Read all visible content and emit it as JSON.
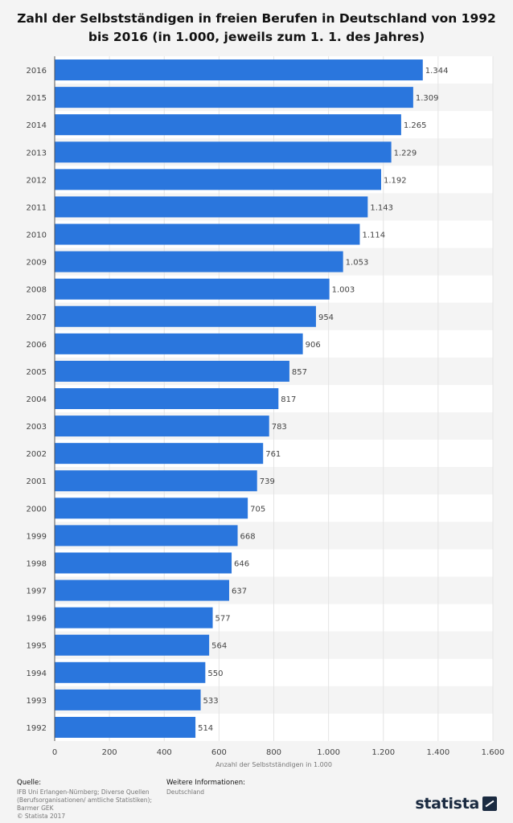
{
  "title": "Zahl der Selbstständigen in freien Berufen in Deutschland von 1992 bis 2016 (in 1.000, jeweils zum 1. 1. des Jahres)",
  "colors": {
    "bar": "#2a76dd",
    "band_light": "#ffffff",
    "band_dark": "#f4f4f4",
    "plot_bg": "#f4f4f4",
    "grid": "#e4e4e4",
    "axis_text": "#444444",
    "label_text": "#444444"
  },
  "chart_data": {
    "type": "bar",
    "orientation": "horizontal",
    "categories": [
      "2016",
      "2015",
      "2014",
      "2013",
      "2012",
      "2011",
      "2010",
      "2009",
      "2008",
      "2007",
      "2006",
      "2005",
      "2004",
      "2003",
      "2002",
      "2001",
      "2000",
      "1999",
      "1998",
      "1997",
      "1996",
      "1995",
      "1994",
      "1993",
      "1992"
    ],
    "values": [
      1344,
      1309,
      1265,
      1229,
      1192,
      1143,
      1114,
      1053,
      1003,
      954,
      906,
      857,
      817,
      783,
      761,
      739,
      705,
      668,
      646,
      637,
      577,
      564,
      550,
      533,
      514
    ],
    "value_labels": [
      "1.344",
      "1.309",
      "1.265",
      "1.229",
      "1.192",
      "1.143",
      "1.114",
      "1.053",
      "1.003",
      "954",
      "906",
      "857",
      "817",
      "783",
      "761",
      "739",
      "705",
      "668",
      "646",
      "637",
      "577",
      "564",
      "550",
      "533",
      "514"
    ],
    "x_ticks": [
      0,
      200,
      400,
      600,
      800,
      1000,
      1200,
      1400,
      1600
    ],
    "x_tick_labels": [
      "0",
      "200",
      "400",
      "600",
      "800",
      "1.000",
      "1.200",
      "1.400",
      "1.600"
    ],
    "xlim": [
      0,
      1600
    ],
    "xlabel": "Anzahl der Selbstständigen in 1.000",
    "ylabel": "",
    "grid": true
  },
  "footer": {
    "source_heading": "Quelle:",
    "source_lines": [
      "IFB Uni Erlangen-Nürnberg; Diverse Quellen",
      "(Berufsorganisationen/ amtliche Statistiken);",
      "Barmer GEK",
      "© Statista 2017"
    ],
    "info_heading": "Weitere Informationen:",
    "info_text": "Deutschland",
    "brand": "statista"
  }
}
